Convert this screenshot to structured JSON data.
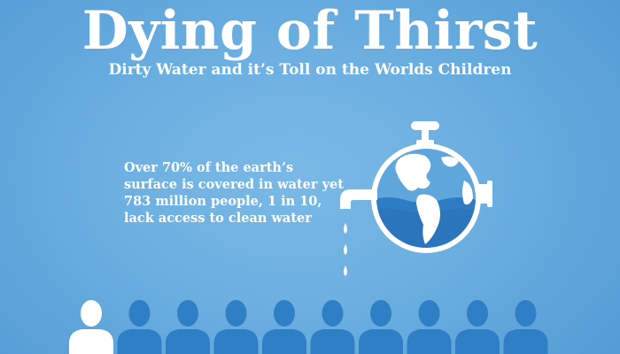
{
  "header": {
    "title": "Dying of Thirst",
    "subtitle": "Dirty Water and it’s Toll on the Worlds Children"
  },
  "fact": {
    "text": "Over 70% of the earth’s surface is covered in water yet 783 million people, 1 in 10, lack access to clean water"
  },
  "people": {
    "total": 10,
    "highlighted": 1
  },
  "colors": {
    "background": "#6aaee0",
    "figure_dark": "#2f7fc6",
    "figure_light": "#ffffff",
    "globe_water": "#2e7cc4",
    "land": "#ffffff"
  }
}
